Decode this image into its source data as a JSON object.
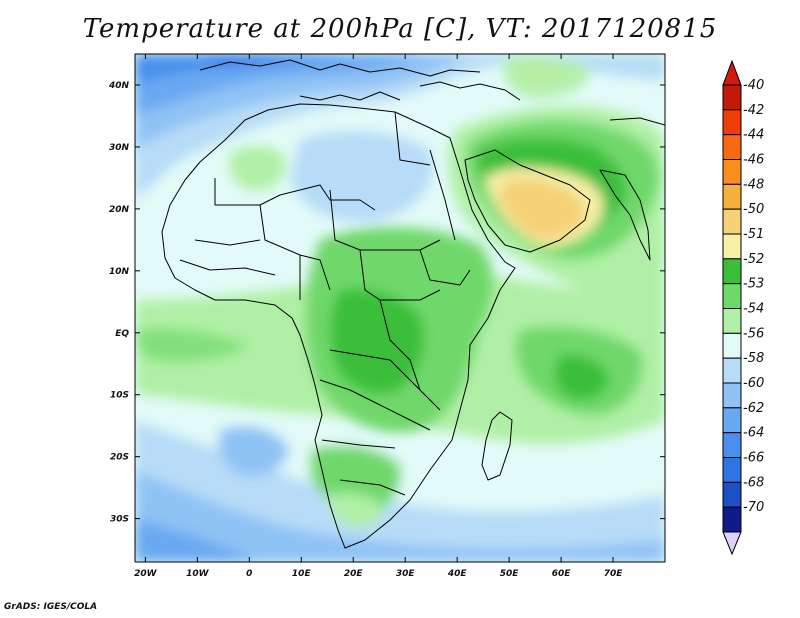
{
  "title": "Temperature at 200hPa [C], VT: 2017120815",
  "footer": "GrADS: IGES/COLA",
  "map": {
    "lon_range": [
      -22,
      80
    ],
    "lat_range": [
      -37,
      45
    ],
    "lon_ticks": [
      {
        "value": -20,
        "label": "20W"
      },
      {
        "value": -10,
        "label": "10W"
      },
      {
        "value": 0,
        "label": "0"
      },
      {
        "value": 10,
        "label": "10E"
      },
      {
        "value": 20,
        "label": "20E"
      },
      {
        "value": 30,
        "label": "30E"
      },
      {
        "value": 40,
        "label": "40E"
      },
      {
        "value": 50,
        "label": "50E"
      },
      {
        "value": 60,
        "label": "60E"
      },
      {
        "value": 70,
        "label": "70E"
      }
    ],
    "lat_ticks": [
      {
        "value": 40,
        "label": "40N"
      },
      {
        "value": 30,
        "label": "30N"
      },
      {
        "value": 20,
        "label": "20N"
      },
      {
        "value": 10,
        "label": "10N"
      },
      {
        "value": 0,
        "label": "EQ"
      },
      {
        "value": -10,
        "label": "10S"
      },
      {
        "value": -20,
        "label": "20S"
      },
      {
        "value": -30,
        "label": "30S"
      }
    ]
  },
  "colorbar": {
    "levels": [
      {
        "label": "-40",
        "color": "#c21a0a"
      },
      {
        "label": "-42",
        "color": "#f03c0a"
      },
      {
        "label": "-44",
        "color": "#f76a13"
      },
      {
        "label": "-46",
        "color": "#f9901e"
      },
      {
        "label": "-48",
        "color": "#f6b13c"
      },
      {
        "label": "-50",
        "color": "#f5d277"
      },
      {
        "label": "-51",
        "color": "#f7f0a8"
      },
      {
        "label": "-52",
        "color": "#3bbf3b"
      },
      {
        "label": "-53",
        "color": "#6fd86b"
      },
      {
        "label": "-54",
        "color": "#b0f0a6"
      },
      {
        "label": "-56",
        "color": "#e2fbf8"
      },
      {
        "label": "-58",
        "color": "#b8dcf7"
      },
      {
        "label": "-60",
        "color": "#8fc2f5"
      },
      {
        "label": "-62",
        "color": "#69a8f2"
      },
      {
        "label": "-64",
        "color": "#4a8fee"
      },
      {
        "label": "-66",
        "color": "#2f74e5"
      },
      {
        "label": "-68",
        "color": "#1c50c5"
      },
      {
        "label": "-70",
        "color": "#101a8a"
      }
    ],
    "top_arrow_color": "#d11a0c",
    "bottom_arrow_color": "#dcd2f7"
  }
}
